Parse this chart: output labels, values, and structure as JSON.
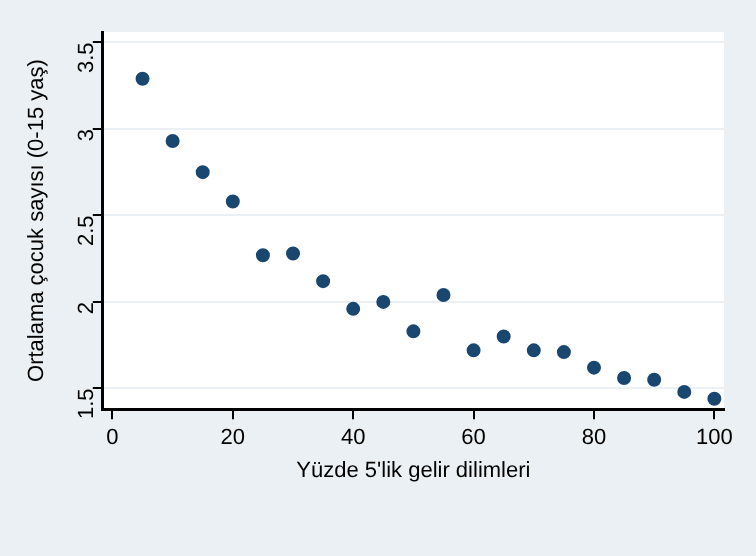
{
  "chart_data": {
    "type": "scatter",
    "xlabel": "Yüzde 5'lik gelir dilimleri",
    "ylabel": "Ortalama çocuk sayısı (0-15 yaş)",
    "x": [
      5,
      10,
      15,
      20,
      25,
      30,
      35,
      40,
      45,
      50,
      55,
      60,
      65,
      70,
      75,
      80,
      85,
      90,
      95,
      100
    ],
    "values": [
      3.29,
      2.93,
      2.75,
      2.58,
      2.27,
      2.28,
      2.12,
      1.96,
      2.0,
      1.83,
      2.04,
      1.72,
      1.8,
      1.72,
      1.71,
      1.62,
      1.56,
      1.55,
      1.48,
      1.44
    ],
    "color": "#1a476f",
    "marker": "circle",
    "xlim": [
      -1.6,
      101.6
    ],
    "xticks": [
      0,
      20,
      40,
      60,
      80,
      100
    ],
    "ylim": [
      1.38,
      3.56
    ],
    "yticks": [
      1.5,
      2,
      2.5,
      3,
      3.5
    ],
    "grid": "y",
    "legend": false
  }
}
